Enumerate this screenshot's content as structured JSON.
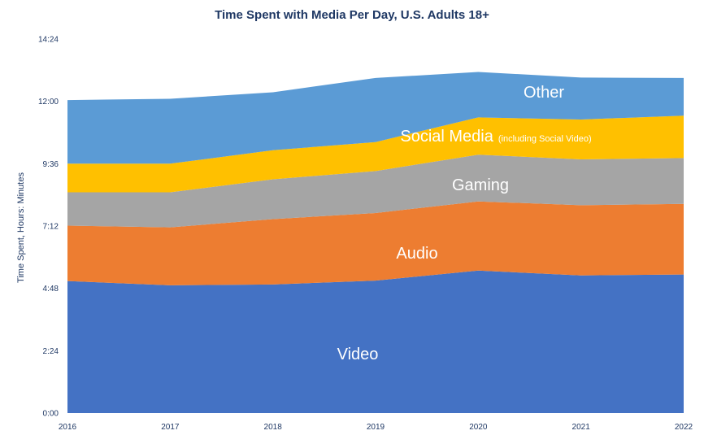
{
  "chart_data": {
    "type": "area",
    "stacked": true,
    "title": "Time Spent with Media Per Day, U.S. Adults 18+",
    "xlabel": "",
    "ylabel": "Time Spent, Hours: Minutes",
    "x": [
      "2016",
      "2017",
      "2018",
      "2019",
      "2020",
      "2021",
      "2022"
    ],
    "y_ticks": [
      "0:00",
      "2:24",
      "4:48",
      "7:12",
      "9:36",
      "12:00",
      "14:24"
    ],
    "ylim_minutes": [
      0,
      864
    ],
    "grid": false,
    "legend": "none (labels drawn inside areas)",
    "series": [
      {
        "name": "Video",
        "label": "Video",
        "color": "#4472c4",
        "values_minutes": [
          305,
          295,
          297,
          306,
          329,
          318,
          320
        ]
      },
      {
        "name": "Audio",
        "label": "Audio",
        "color": "#ed7d31",
        "values_minutes": [
          128,
          134,
          151,
          156,
          160,
          162,
          163
        ]
      },
      {
        "name": "Gaming",
        "label": "Gaming",
        "color": "#a5a5a5",
        "values_minutes": [
          77,
          81,
          92,
          97,
          108,
          106,
          106
        ]
      },
      {
        "name": "Social Media",
        "label": "Social Media",
        "sublabel": "(including Social Video)",
        "color": "#ffc000",
        "values_minutes": [
          66,
          66,
          67,
          67,
          86,
          92,
          98
        ]
      },
      {
        "name": "Other",
        "label": "Other",
        "color": "#5b9bd5",
        "values_minutes": [
          147,
          150,
          134,
          148,
          105,
          97,
          87
        ]
      }
    ]
  }
}
